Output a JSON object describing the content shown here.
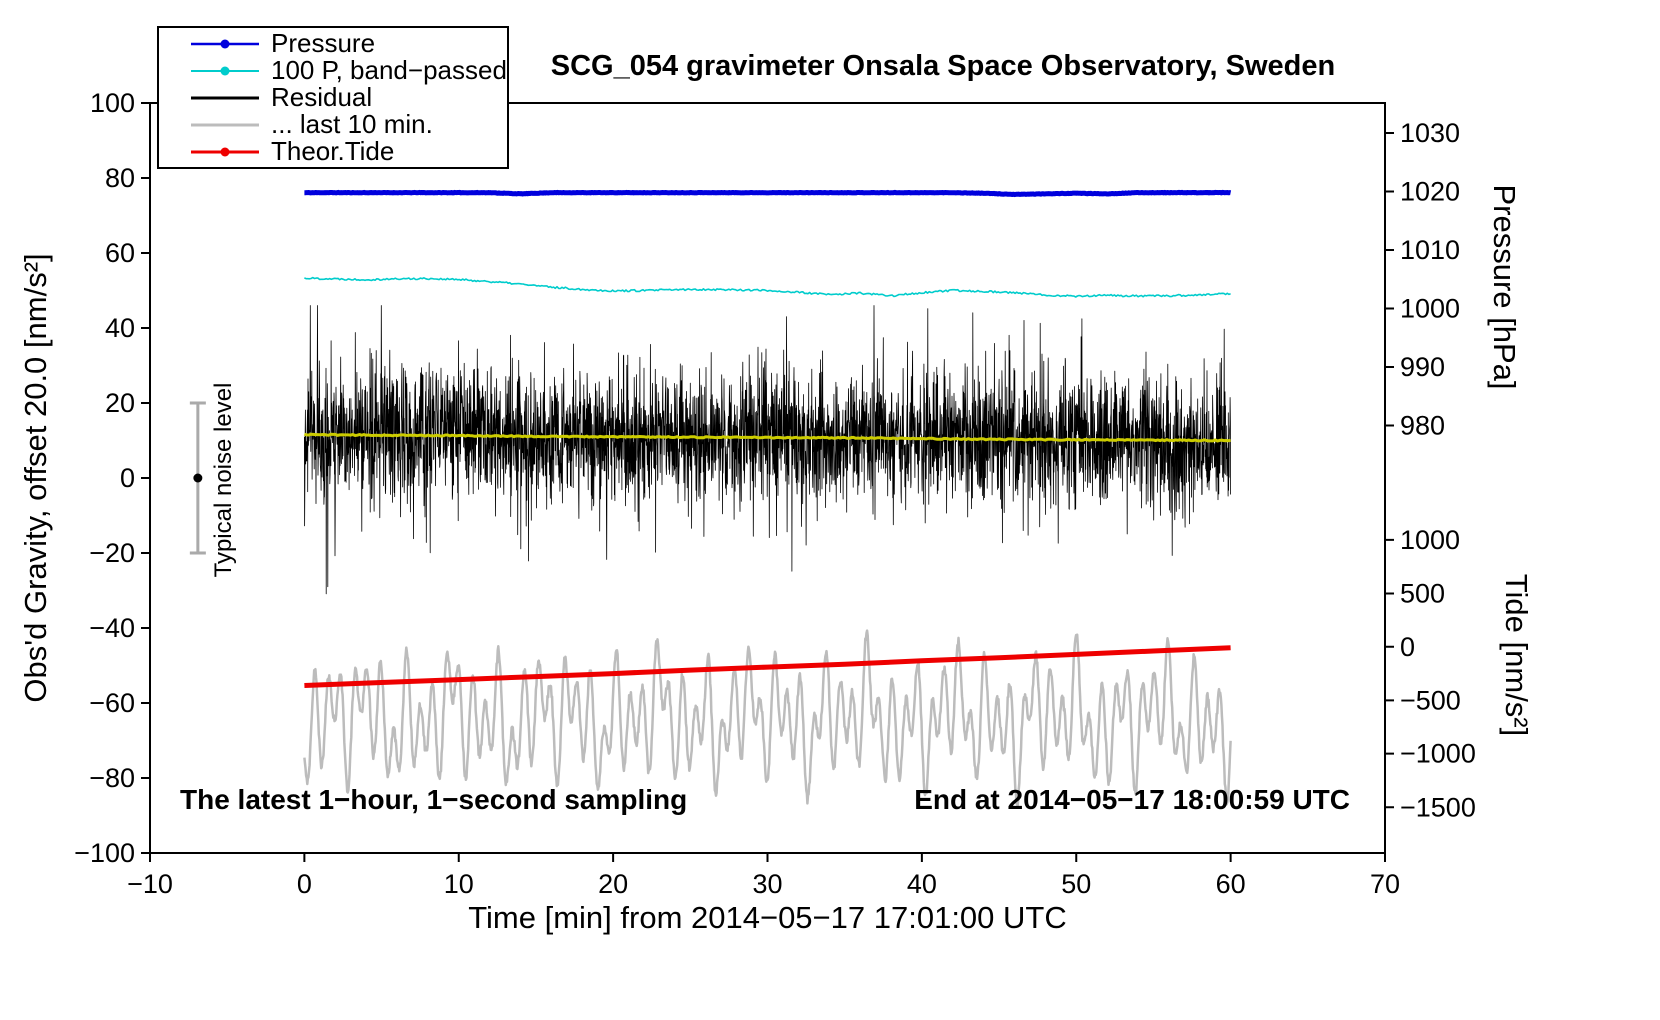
{
  "annotations": {
    "bottom_left": "The latest 1−hour, 1−second sampling",
    "bottom_right": "End at 2014−05−17 18:00:59 UTC",
    "noise_label": "Typical noise level"
  },
  "legend": [
    {
      "label": "Pressure",
      "color": "#0000dd",
      "dot": true,
      "width": 2.5
    },
    {
      "label": "100 P, band−passed",
      "color": "#00cccc",
      "dot": true,
      "width": 2
    },
    {
      "label": "Residual",
      "color": "#000000",
      "dot": false,
      "width": 3
    },
    {
      "label": "... last 10 min.",
      "color": "#bcbcbc",
      "dot": false,
      "width": 3
    },
    {
      "label": "Theor.Tide",
      "color": "#ee0000",
      "dot": true,
      "width": 3
    }
  ],
  "chart_data": {
    "type": "line",
    "title": "SCG_054 gravimeter Onsala Space Observatory, Sweden",
    "xlabel": "Time [min] from 2014−05−17 17:01:00 UTC",
    "ylabel": "Obs'd Gravity, offset 20.0 [nm/s²]",
    "xlim": [
      -10,
      70
    ],
    "ylim": [
      -100,
      100
    ],
    "x_ticks": [
      -10,
      0,
      10,
      20,
      30,
      40,
      50,
      60,
      70
    ],
    "x_tick_labels": [
      "−10",
      "0",
      "10",
      "20",
      "30",
      "40",
      "50",
      "60",
      "70"
    ],
    "y_ticks": [
      -100,
      -80,
      -60,
      -40,
      -20,
      0,
      20,
      40,
      60,
      80,
      100
    ],
    "y_tick_labels": [
      "−100",
      "−80",
      "−60",
      "−40",
      "−20",
      "0",
      "20",
      "40",
      "60",
      "80",
      "100"
    ],
    "right_axes": {
      "pressure": {
        "label": "Pressure [hPa]",
        "ticks": [
          1030,
          1020,
          1010,
          1000,
          990,
          980
        ],
        "tick_labels": [
          "1030",
          "1020",
          "1010",
          "1000",
          "990",
          "980"
        ],
        "tick_left_units": [
          92.0,
          76.4,
          60.8,
          45.2,
          29.6,
          14.0
        ]
      },
      "tide": {
        "label": "Tide [nm/s²]",
        "ticks": [
          1000,
          500,
          0,
          -500,
          -1000,
          -1500
        ],
        "tick_labels": [
          "1000",
          "500",
          "0",
          "−500",
          "−1000",
          "−1500"
        ],
        "tick_left_units": [
          -16.5,
          -30.8,
          -45.0,
          -59.3,
          -73.5,
          -87.8
        ]
      }
    },
    "noise_bar": {
      "x": -6.9,
      "y_low": -20,
      "y_high": 20,
      "dot_y": 0
    },
    "series": [
      {
        "name": "Pressure",
        "axis": "pressure",
        "color": "#0000dd",
        "width": 5,
        "type": "wiggly",
        "x0": 0,
        "x_step": 2,
        "jitter": 0.04,
        "points": 900,
        "seed": 11,
        "values": [
          1019.8,
          1019.8,
          1019.8,
          1019.8,
          1019.8,
          1019.8,
          1019.8,
          1019.6,
          1019.8,
          1019.8,
          1019.8,
          1019.8,
          1019.8,
          1019.8,
          1019.8,
          1019.8,
          1019.8,
          1019.8,
          1019.8,
          1019.8,
          1019.8,
          1019.8,
          1019.7,
          1019.5,
          1019.6,
          1019.7,
          1019.6,
          1019.8,
          1019.8,
          1019.8,
          1019.8
        ]
      },
      {
        "name": "100 P, band−passed",
        "axis": "left",
        "color": "#00cccc",
        "width": 1.6,
        "type": "wiggly",
        "x0": 0,
        "x_step": 2,
        "jitter": 0.25,
        "points": 550,
        "seed": 22,
        "values": [
          53.3,
          53.1,
          52.9,
          53.1,
          53.2,
          52.9,
          52.4,
          51.7,
          50.9,
          50.3,
          49.9,
          50.0,
          50.2,
          50.3,
          50.2,
          50.0,
          49.5,
          48.9,
          49.3,
          48.6,
          49.4,
          50.0,
          49.8,
          49.4,
          48.8,
          48.5,
          48.7,
          48.5,
          48.6,
          48.8,
          49.2
        ]
      },
      {
        "name": "Residual",
        "axis": "left",
        "color": "#000000",
        "width": 0.8,
        "type": "noise",
        "x0": 0,
        "x_step": 5,
        "seed": 33,
        "points": 3600,
        "std": 9,
        "spike_prob": 0.02,
        "spike_mult": 2.4,
        "clip_low": -33,
        "clip_high": 46,
        "center": [
          11.6,
          11.4,
          11.3,
          11.1,
          11.0,
          10.9,
          10.8,
          10.7,
          10.5,
          10.3,
          10.2,
          10.1,
          10.0
        ]
      },
      {
        "name": "Residual smoothed",
        "axis": "left",
        "color": "#cccc00",
        "width": 3,
        "type": "wiggly",
        "x0": 0,
        "x_step": 5,
        "jitter": 0.15,
        "points": 420,
        "seed": 44,
        "values": [
          11.6,
          11.4,
          11.3,
          11.1,
          11.0,
          10.9,
          10.8,
          10.7,
          10.5,
          10.3,
          10.2,
          10.1,
          10.0
        ]
      },
      {
        "name": "... last 10 min.",
        "axis": "left",
        "color": "#bcbcbc",
        "width": 2.5,
        "type": "osc",
        "x0": 0,
        "seed": 55,
        "points": 1600,
        "center": -64,
        "periods": [
          0.85,
          1.5,
          2.7,
          6.5
        ],
        "amps": [
          10,
          7,
          5,
          3
        ],
        "jitter": 1.2
      },
      {
        "name": "Theor.Tide",
        "axis": "tide",
        "color": "#ee0000",
        "width": 5,
        "type": "line",
        "x0": 0,
        "x_step": 5,
        "values": [
          -362,
          -334,
          -306,
          -278,
          -250,
          -218,
          -190,
          -162,
          -131,
          -103,
          -71,
          -39,
          -8
        ]
      }
    ]
  }
}
